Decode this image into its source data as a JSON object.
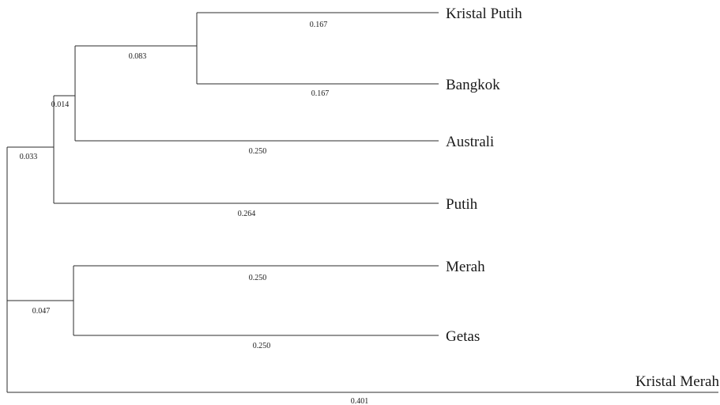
{
  "tree": {
    "leaves": [
      {
        "id": "kristal_putih",
        "name": "Kristal Putih",
        "branch_length": "0.167"
      },
      {
        "id": "bangkok",
        "name": "Bangkok",
        "branch_length": "0.167"
      },
      {
        "id": "australi",
        "name": "Australi",
        "branch_length": "0.250"
      },
      {
        "id": "putih",
        "name": "Putih",
        "branch_length": "0.264"
      },
      {
        "id": "merah",
        "name": "Merah",
        "branch_length": "0.250"
      },
      {
        "id": "getas",
        "name": "Getas",
        "branch_length": "0.250"
      },
      {
        "id": "kristal_merah",
        "name": "Kristal Merah",
        "branch_length": "0.401"
      }
    ],
    "internal_branches": [
      {
        "id": "clade_kp_bk",
        "branch_length": "0.083"
      },
      {
        "id": "clade_kp_bk_au",
        "branch_length": "0.014"
      },
      {
        "id": "clade_upper",
        "branch_length": "0.033"
      },
      {
        "id": "clade_merah_getas",
        "branch_length": "0.047"
      }
    ]
  }
}
